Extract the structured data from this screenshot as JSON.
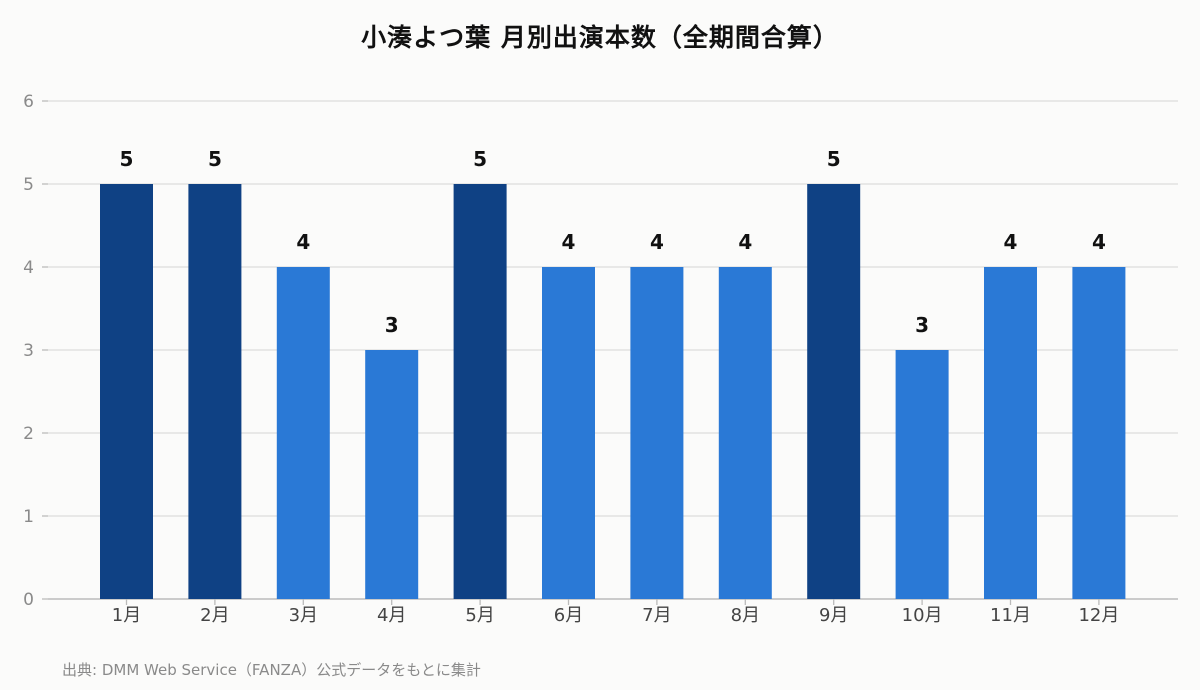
{
  "chart_data": {
    "type": "bar",
    "title": "小湊よつ葉 月別出演本数（全期間合算）",
    "categories": [
      "1月",
      "2月",
      "3月",
      "4月",
      "5月",
      "6月",
      "7月",
      "8月",
      "9月",
      "10月",
      "11月",
      "12月"
    ],
    "values": [
      5,
      5,
      4,
      3,
      5,
      4,
      4,
      4,
      5,
      3,
      4,
      4
    ],
    "ylim": [
      0,
      6
    ],
    "yticks": [
      0,
      1,
      2,
      3,
      4,
      5,
      6
    ],
    "grid": true,
    "data_labels": true,
    "colors": {
      "max": "#0f4184",
      "default": "#2a79d6",
      "grid": "#dcdcdc",
      "axis": "#bbbbbb",
      "tick_text": "#8a8a8a",
      "label_text": "#111111"
    }
  },
  "source": "出典: DMM Web Service（FANZA）公式データをもとに集計"
}
